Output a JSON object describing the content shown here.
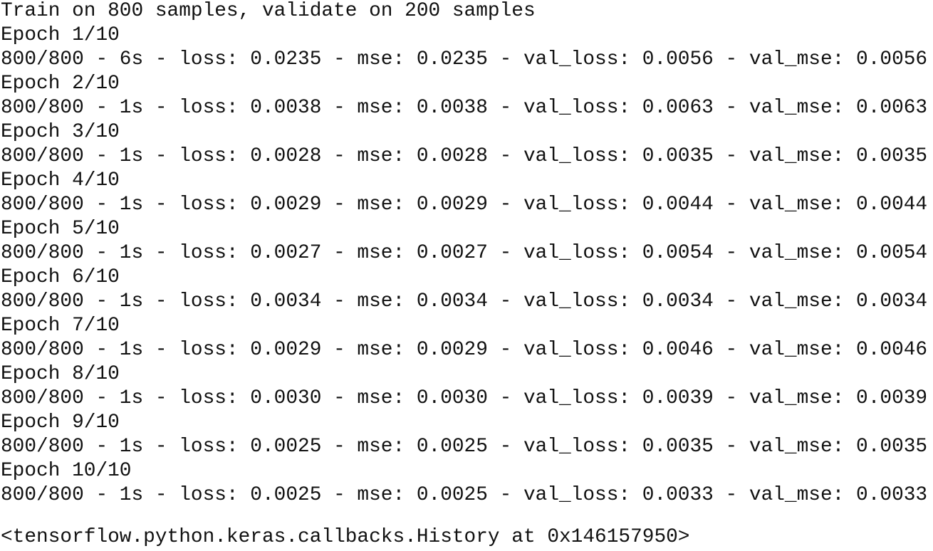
{
  "output": {
    "header": "Train on 800 samples, validate on 200 samples",
    "epochs": [
      {
        "label": "Epoch 1/10",
        "progress": "800/800 - 6s - loss: 0.0235 - mse: 0.0235 - val_loss: 0.0056 - val_mse: 0.0056"
      },
      {
        "label": "Epoch 2/10",
        "progress": "800/800 - 1s - loss: 0.0038 - mse: 0.0038 - val_loss: 0.0063 - val_mse: 0.0063"
      },
      {
        "label": "Epoch 3/10",
        "progress": "800/800 - 1s - loss: 0.0028 - mse: 0.0028 - val_loss: 0.0035 - val_mse: 0.0035"
      },
      {
        "label": "Epoch 4/10",
        "progress": "800/800 - 1s - loss: 0.0029 - mse: 0.0029 - val_loss: 0.0044 - val_mse: 0.0044"
      },
      {
        "label": "Epoch 5/10",
        "progress": "800/800 - 1s - loss: 0.0027 - mse: 0.0027 - val_loss: 0.0054 - val_mse: 0.0054"
      },
      {
        "label": "Epoch 6/10",
        "progress": "800/800 - 1s - loss: 0.0034 - mse: 0.0034 - val_loss: 0.0034 - val_mse: 0.0034"
      },
      {
        "label": "Epoch 7/10",
        "progress": "800/800 - 1s - loss: 0.0029 - mse: 0.0029 - val_loss: 0.0046 - val_mse: 0.0046"
      },
      {
        "label": "Epoch 8/10",
        "progress": "800/800 - 1s - loss: 0.0030 - mse: 0.0030 - val_loss: 0.0039 - val_mse: 0.0039"
      },
      {
        "label": "Epoch 9/10",
        "progress": "800/800 - 1s - loss: 0.0025 - mse: 0.0025 - val_loss: 0.0035 - val_mse: 0.0035"
      },
      {
        "label": "Epoch 10/10",
        "progress": "800/800 - 1s - loss: 0.0025 - mse: 0.0025 - val_loss: 0.0033 - val_mse: 0.0033"
      }
    ],
    "result": "<tensorflow.python.keras.callbacks.History at 0x146157950>"
  }
}
